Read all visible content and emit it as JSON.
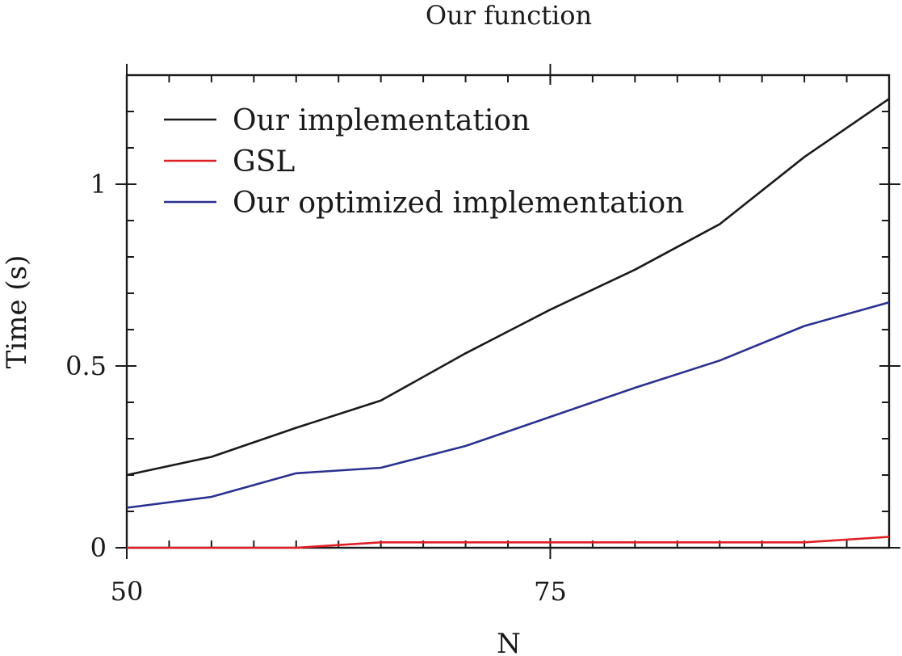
{
  "chart_data": {
    "type": "line",
    "title": "Our function",
    "xlabel": "N",
    "ylabel": "Time (s)",
    "xlim": [
      50,
      95
    ],
    "ylim": [
      0,
      1.3
    ],
    "x_ticks": [
      50,
      75
    ],
    "x_tick_labels": [
      "50",
      "75"
    ],
    "y_ticks": [
      0,
      0.5,
      1
    ],
    "y_tick_labels": [
      "0",
      "0.5",
      "1"
    ],
    "grid": false,
    "legend_position": "top-left",
    "x": [
      50,
      55,
      60,
      65,
      70,
      75,
      80,
      85,
      90,
      95
    ],
    "series": [
      {
        "name": "Our implementation",
        "color": "#1a1a1a",
        "values": [
          0.2,
          0.25,
          0.33,
          0.405,
          0.535,
          0.655,
          0.765,
          0.89,
          1.075,
          1.235
        ]
      },
      {
        "name": "GSL",
        "color": "#e01f26",
        "values": [
          0.0,
          0.0,
          0.0,
          0.015,
          0.015,
          0.015,
          0.015,
          0.015,
          0.015,
          0.03
        ]
      },
      {
        "name": "Our optimized implementation",
        "color": "#2b3190",
        "values": [
          0.11,
          0.14,
          0.205,
          0.22,
          0.28,
          0.36,
          0.44,
          0.515,
          0.61,
          0.675
        ]
      }
    ]
  }
}
